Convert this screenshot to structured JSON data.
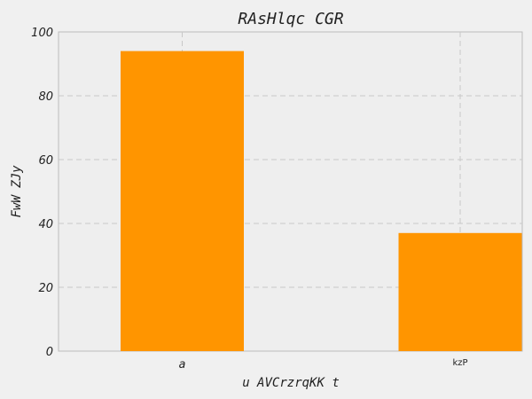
{
  "colors": {
    "bar": "#ff9500",
    "plot_background": "#eeeeee",
    "figure_background": "#f0f0f0",
    "grid": "#c8c8c8"
  },
  "chart_data": {
    "type": "bar",
    "title": "RAsHlqc CGR",
    "xlabel": "u AVCrzrqKK t",
    "ylabel": "FwW ZJy",
    "categories": [
      "a",
      "kzP"
    ],
    "values": [
      94,
      37
    ],
    "ylim": [
      0,
      100
    ],
    "yticks": [
      0,
      20,
      40,
      60,
      80,
      100
    ],
    "grid": true,
    "legend": "none"
  }
}
